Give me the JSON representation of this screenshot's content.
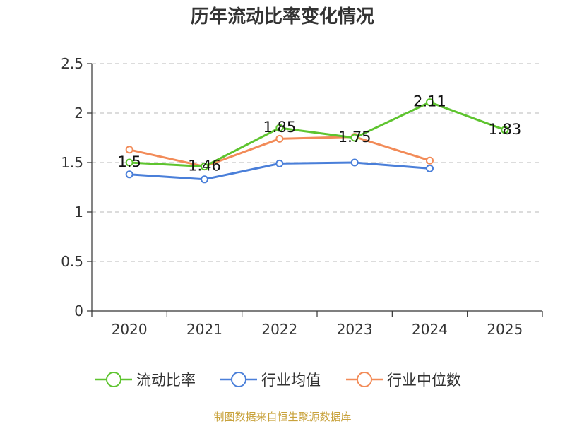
{
  "chart_data": {
    "type": "line",
    "title": "历年流动比率变化情况",
    "categories": [
      "2020",
      "2021",
      "2022",
      "2023",
      "2024",
      "2025"
    ],
    "ylim": [
      0,
      2.5
    ],
    "yticks": [
      "0",
      "0.5",
      "1",
      "1.5",
      "2",
      "2.5"
    ],
    "grid": true,
    "legend_position": "bottom",
    "series": [
      {
        "name": "流动比率",
        "color": "#5ec42f",
        "values": [
          1.5,
          1.46,
          1.85,
          1.75,
          2.11,
          1.83
        ],
        "labels": [
          "1.5",
          "1.46",
          "1.85",
          "1.75",
          "2.11",
          "1.83"
        ]
      },
      {
        "name": "行业均值",
        "color": "#4a7fd9",
        "values": [
          1.38,
          1.33,
          1.49,
          1.5,
          1.44,
          null
        ]
      },
      {
        "name": "行业中位数",
        "color": "#f28b58",
        "values": [
          1.63,
          1.46,
          1.74,
          1.76,
          1.52,
          null
        ]
      }
    ]
  },
  "source": "制图数据来自恒生聚源数据库"
}
